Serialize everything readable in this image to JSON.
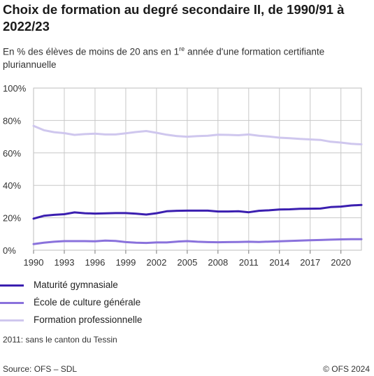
{
  "header": {
    "title": "Choix de formation au degré secondaire II, de 1990/91 à 2022/23",
    "subtitle_pre": "En % des élèves de moins de 20 ans en 1",
    "subtitle_sup": "re",
    "subtitle_post": " année d'une formation certifiante pluriannuelle"
  },
  "chart_data": {
    "type": "line",
    "title": "Choix de formation au degré secondaire II, de 1990/91 à 2022/23",
    "x": [
      1990,
      1991,
      1992,
      1993,
      1994,
      1995,
      1996,
      1997,
      1998,
      1999,
      2000,
      2001,
      2002,
      2003,
      2004,
      2005,
      2006,
      2007,
      2008,
      2009,
      2010,
      2011,
      2012,
      2013,
      2014,
      2015,
      2016,
      2017,
      2018,
      2019,
      2020,
      2021,
      2022
    ],
    "xticks": [
      "1990",
      "1993",
      "1996",
      "1999",
      "2002",
      "2005",
      "2008",
      "2011",
      "2014",
      "2017",
      "2020"
    ],
    "yticks": [
      "0%",
      "20%",
      "40%",
      "60%",
      "80%",
      "100%"
    ],
    "ylim": [
      0,
      100
    ],
    "grid": true,
    "legend_position": "bottom",
    "series": [
      {
        "name": "Maturité gymnasiale",
        "color": "#3b1fb0",
        "values": [
          19.5,
          21.2,
          21.8,
          22.2,
          23.3,
          22.8,
          22.6,
          22.7,
          22.9,
          22.9,
          22.5,
          22.0,
          22.8,
          24.0,
          24.3,
          24.4,
          24.4,
          24.4,
          23.9,
          23.9,
          24.0,
          23.4,
          24.3,
          24.6,
          25.1,
          25.2,
          25.5,
          25.6,
          25.7,
          26.6,
          26.9,
          27.6,
          27.9
        ]
      },
      {
        "name": "École de culture générale",
        "color": "#8a72dc",
        "values": [
          3.8,
          4.6,
          5.2,
          5.6,
          5.6,
          5.6,
          5.5,
          5.9,
          5.7,
          5.0,
          4.6,
          4.5,
          4.8,
          4.8,
          5.3,
          5.6,
          5.2,
          5.0,
          4.9,
          5.0,
          5.1,
          5.2,
          5.1,
          5.3,
          5.5,
          5.7,
          5.9,
          6.1,
          6.3,
          6.5,
          6.7,
          6.8,
          6.8
        ]
      },
      {
        "name": "Formation professionnelle",
        "color": "#cfc7ee",
        "values": [
          76.7,
          74.0,
          72.8,
          72.2,
          71.1,
          71.6,
          71.9,
          71.4,
          71.4,
          72.1,
          72.9,
          73.5,
          72.4,
          71.2,
          70.4,
          70.0,
          70.4,
          70.6,
          71.2,
          71.1,
          70.9,
          71.4,
          70.6,
          70.1,
          69.4,
          69.1,
          68.6,
          68.3,
          68.0,
          66.9,
          66.4,
          65.6,
          65.3
        ]
      }
    ]
  },
  "note": "2011: sans le canton du Tessin",
  "footer": {
    "source": "Source: OFS – SDL",
    "copyright": "© OFS 2024"
  }
}
